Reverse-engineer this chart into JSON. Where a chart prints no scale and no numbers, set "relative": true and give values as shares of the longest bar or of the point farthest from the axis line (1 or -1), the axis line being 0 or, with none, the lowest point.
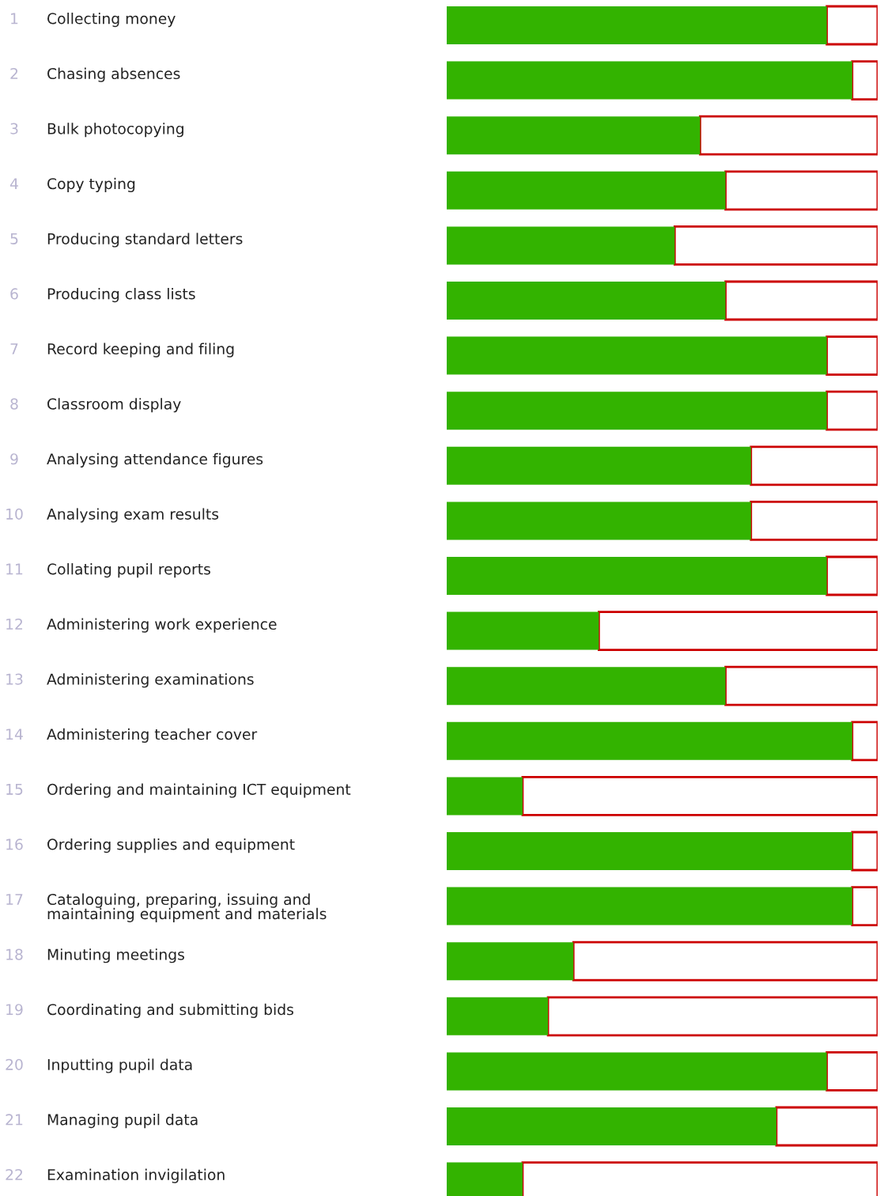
{
  "chart_data": {
    "type": "bar",
    "orientation": "horizontal",
    "stacked": true,
    "relative": true,
    "categories": [
      "1 Collecting money",
      "2 Chasing absences",
      "3 Bulk photocopying",
      "4 Copy typing",
      "5 Producing standard letters",
      "6 Producing class lists",
      "7 Record keeping and filing",
      "8 Classroom display",
      "9 Analysing attendance figures",
      "10 Analysing exam results",
      "11 Collating pupil reports",
      "12 Administering work experience",
      "13 Administering examinations",
      "14 Administering teacher cover",
      "15 Ordering and maintaining ICT equipment",
      "16 Ordering supplies and equipment",
      "17 Cataloguing, preparing, issuing and\nmaintaining equipment and materials",
      "18 Minuting meetings",
      "19 Coordinating and submitting bids",
      "20 Inputting pupil data",
      "21 Managing pupil data",
      "22 Examination invigilation"
    ],
    "series": [
      {
        "color": "#33b300",
        "values": [
          0.882,
          0.941,
          0.588,
          0.647,
          0.529,
          0.647,
          0.882,
          0.882,
          0.706,
          0.706,
          0.882,
          0.353,
          0.647,
          0.941,
          0.176,
          0.941,
          0.941,
          0.294,
          0.235,
          0.882,
          0.765,
          0.176
        ]
      },
      {
        "color": "#cc0000",
        "values": [
          0.118,
          0.059,
          0.412,
          0.353,
          0.471,
          0.353,
          0.118,
          0.118,
          0.294,
          0.294,
          0.118,
          0.647,
          0.353,
          0.059,
          0.824,
          0.059,
          0.059,
          0.706,
          0.765,
          0.118,
          0.235,
          0.824
        ]
      }
    ]
  }
}
